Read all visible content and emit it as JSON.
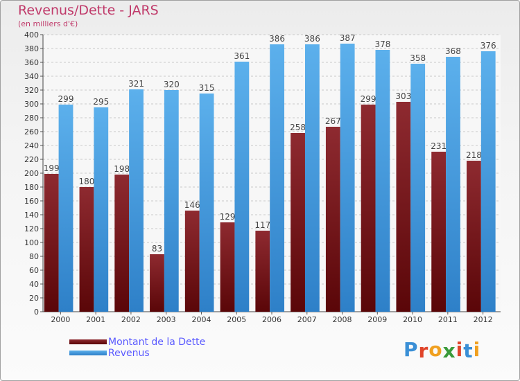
{
  "header": {
    "title": "Revenus/Dette - JARS",
    "subtitle": "(en milliers d'€)"
  },
  "chart_data": {
    "type": "bar",
    "categories": [
      "2000",
      "2001",
      "2002",
      "2003",
      "2004",
      "2005",
      "2006",
      "2007",
      "2008",
      "2009",
      "2010",
      "2011",
      "2012"
    ],
    "series": [
      {
        "name": "Montant de la Dette",
        "color": "#7a1418",
        "values": [
          199,
          180,
          198,
          83,
          146,
          129,
          117,
          258,
          267,
          299,
          303,
          231,
          218
        ]
      },
      {
        "name": "Revenus",
        "color": "#4aa4e6",
        "values": [
          299,
          295,
          321,
          320,
          315,
          361,
          386,
          386,
          387,
          378,
          358,
          368,
          376
        ]
      }
    ],
    "ylim": [
      0,
      400
    ],
    "ytick_step": 20,
    "grid": true,
    "legend_placement": "bottom-left"
  },
  "logo": {
    "letters": [
      "P",
      "r",
      "o",
      "x",
      "i",
      "t",
      "i"
    ],
    "colors": [
      "#3a8fd6",
      "#e0442a",
      "#f0a020",
      "#3a9a3a",
      "#e0442a",
      "#3a8fd6",
      "#f0a020"
    ]
  }
}
